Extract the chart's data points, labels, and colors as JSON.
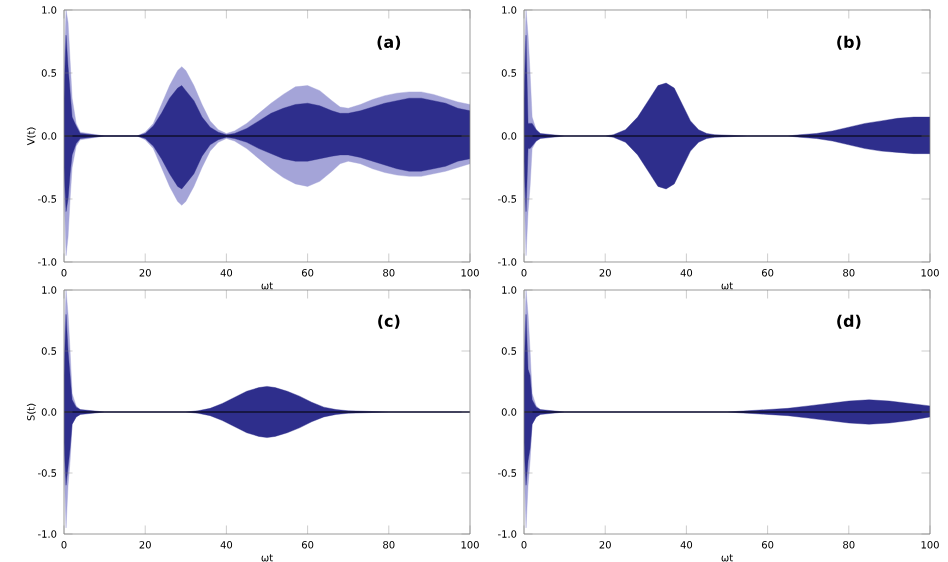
{
  "chart_data": [
    {
      "type": "area",
      "xlabel": "ωt",
      "ylabel": "V(t)",
      "annotations": [
        "(a)"
      ],
      "xlim": [
        0,
        100
      ],
      "ylim": [
        -1,
        1
      ],
      "xticks": [
        0,
        20,
        40,
        60,
        80,
        100
      ],
      "yticks": [
        {
          "value": -1,
          "label": "-1.0"
        },
        {
          "value": -0.5,
          "label": "-0.5"
        },
        {
          "value": 0,
          "label": "0.0"
        },
        {
          "value": 0.5,
          "label": "0.5"
        },
        {
          "value": 1,
          "label": "1.0"
        }
      ],
      "ref_lines": [
        {
          "axis": "y",
          "value": 0,
          "color": "#000000"
        }
      ],
      "x": [
        0,
        0.5,
        1,
        1.5,
        2,
        3,
        4,
        10,
        18,
        20,
        22,
        24,
        26,
        28,
        29,
        30,
        32,
        34,
        36,
        38,
        40,
        42,
        45,
        48,
        51,
        54,
        57,
        60,
        63,
        66,
        68,
        70,
        73,
        76,
        79,
        82,
        85,
        88,
        91,
        94,
        97,
        100
      ],
      "series": [
        {
          "color": "#a4a4d8",
          "values": [
            0.5,
            1.0,
            0.9,
            0.6,
            0.3,
            0.1,
            0.03,
            0,
            0,
            0.03,
            0.1,
            0.25,
            0.4,
            0.52,
            0.55,
            0.52,
            0.4,
            0.25,
            0.12,
            0.05,
            0.02,
            0.04,
            0.1,
            0.18,
            0.26,
            0.33,
            0.39,
            0.4,
            0.36,
            0.28,
            0.23,
            0.22,
            0.25,
            0.29,
            0.32,
            0.34,
            0.35,
            0.35,
            0.33,
            0.3,
            0.27,
            0.25
          ]
        },
        {
          "color": "#a4a4d8",
          "values": [
            -0.4,
            -0.95,
            -0.8,
            -0.5,
            -0.25,
            -0.08,
            -0.03,
            0,
            0,
            -0.03,
            -0.1,
            -0.25,
            -0.4,
            -0.52,
            -0.55,
            -0.52,
            -0.4,
            -0.25,
            -0.12,
            -0.05,
            -0.02,
            -0.04,
            -0.1,
            -0.18,
            -0.26,
            -0.33,
            -0.38,
            -0.4,
            -0.36,
            -0.28,
            -0.22,
            -0.2,
            -0.22,
            -0.26,
            -0.29,
            -0.31,
            -0.32,
            -0.32,
            -0.3,
            -0.28,
            -0.25,
            -0.22
          ]
        },
        {
          "color": "#2e2e8c",
          "values": [
            0.3,
            0.8,
            0.55,
            0.35,
            0.15,
            0.08,
            0.02,
            0,
            0,
            0.02,
            0.08,
            0.18,
            0.3,
            0.38,
            0.4,
            0.36,
            0.28,
            0.15,
            0.07,
            0.03,
            0.01,
            0.02,
            0.06,
            0.12,
            0.18,
            0.22,
            0.25,
            0.26,
            0.24,
            0.2,
            0.18,
            0.18,
            0.2,
            0.23,
            0.26,
            0.28,
            0.3,
            0.3,
            0.28,
            0.26,
            0.22,
            0.2
          ]
        },
        {
          "color": "#2e2e8c",
          "values": [
            -0.25,
            -0.6,
            -0.5,
            -0.3,
            -0.15,
            -0.06,
            -0.02,
            0,
            0,
            -0.02,
            -0.08,
            -0.18,
            -0.3,
            -0.4,
            -0.42,
            -0.38,
            -0.3,
            -0.16,
            -0.07,
            -0.03,
            -0.01,
            -0.02,
            -0.05,
            -0.1,
            -0.14,
            -0.18,
            -0.2,
            -0.2,
            -0.18,
            -0.16,
            -0.15,
            -0.15,
            -0.17,
            -0.2,
            -0.23,
            -0.26,
            -0.28,
            -0.28,
            -0.26,
            -0.24,
            -0.2,
            -0.18
          ]
        }
      ]
    },
    {
      "type": "area",
      "xlabel": "ωt",
      "annotations": [
        "(b)"
      ],
      "xlim": [
        0,
        100
      ],
      "ylim": [
        -1,
        1
      ],
      "xticks": [
        0,
        20,
        40,
        60,
        80,
        100
      ],
      "yticks": [
        {
          "value": -1,
          "label": "-1.0"
        },
        {
          "value": -0.5,
          "label": "-0.5"
        },
        {
          "value": 0,
          "label": "0.0"
        },
        {
          "value": 0.5,
          "label": "0.5"
        },
        {
          "value": 1,
          "label": "1.0"
        }
      ],
      "ref_lines": [
        {
          "axis": "y",
          "value": 0,
          "color": "#000000"
        }
      ],
      "x": [
        0,
        0.5,
        1,
        1.5,
        2,
        3,
        4,
        10,
        20,
        22,
        25,
        28,
        31,
        33,
        35,
        37,
        39,
        41,
        43,
        45,
        47,
        55,
        65,
        68,
        72,
        76,
        80,
        84,
        88,
        92,
        96,
        100
      ],
      "series": [
        {
          "color": "#a4a4d8",
          "x": [
            0,
            0.5,
            1,
            1.5,
            2,
            3,
            4
          ],
          "values": [
            0.5,
            1.0,
            0.8,
            0.5,
            0.15,
            0.05,
            0.02
          ]
        },
        {
          "color": "#a4a4d8",
          "x": [
            0,
            0.5,
            1,
            1.5,
            2,
            3,
            4
          ],
          "values": [
            -0.4,
            -0.95,
            -0.6,
            -0.4,
            -0.1,
            -0.04,
            -0.02
          ]
        },
        {
          "color": "#2e2e8c",
          "values": [
            0.3,
            0.8,
            0.1,
            0.1,
            0.1,
            0.05,
            0.02,
            0,
            0,
            0.01,
            0.05,
            0.15,
            0.3,
            0.4,
            0.42,
            0.38,
            0.25,
            0.12,
            0.05,
            0.02,
            0.01,
            0,
            0,
            0.01,
            0.02,
            0.04,
            0.07,
            0.1,
            0.12,
            0.14,
            0.15,
            0.15
          ]
        },
        {
          "color": "#2e2e8c",
          "values": [
            -0.2,
            -0.6,
            -0.1,
            -0.1,
            -0.08,
            -0.04,
            -0.02,
            0,
            0,
            -0.01,
            -0.05,
            -0.15,
            -0.3,
            -0.4,
            -0.42,
            -0.38,
            -0.25,
            -0.12,
            -0.05,
            -0.02,
            -0.01,
            0,
            0,
            -0.01,
            -0.02,
            -0.04,
            -0.07,
            -0.1,
            -0.12,
            -0.13,
            -0.14,
            -0.14
          ]
        }
      ]
    },
    {
      "type": "area",
      "xlabel": "ωt",
      "ylabel": "S(t)",
      "annotations": [
        "(c)"
      ],
      "xlim": [
        0,
        100
      ],
      "ylim": [
        -1,
        1
      ],
      "xticks": [
        0,
        20,
        40,
        60,
        80,
        100
      ],
      "yticks": [
        {
          "value": -1,
          "label": "-1.0"
        },
        {
          "value": -0.5,
          "label": "-0.5"
        },
        {
          "value": 0,
          "label": "0.0"
        },
        {
          "value": 0.5,
          "label": "0.5"
        },
        {
          "value": 1,
          "label": "1.0"
        }
      ],
      "ref_lines": [
        {
          "axis": "y",
          "value": 0,
          "color": "#000000"
        }
      ],
      "x": [
        0,
        0.5,
        1,
        1.5,
        2,
        3,
        4,
        10,
        30,
        33,
        36,
        39,
        42,
        45,
        48,
        50,
        52,
        55,
        58,
        61,
        64,
        67,
        70,
        80,
        100
      ],
      "series": [
        {
          "color": "#a4a4d8",
          "x": [
            0,
            0.5,
            1,
            1.5,
            2,
            3,
            4
          ],
          "values": [
            0.5,
            1.0,
            0.8,
            0.5,
            0.15,
            0.05,
            0.02
          ]
        },
        {
          "color": "#a4a4d8",
          "x": [
            0,
            0.5,
            1,
            1.5,
            2,
            3,
            4
          ],
          "values": [
            -0.4,
            -0.95,
            -0.6,
            -0.4,
            -0.1,
            -0.04,
            -0.02
          ]
        },
        {
          "color": "#2e2e8c",
          "values": [
            0.3,
            0.8,
            0.5,
            0.3,
            0.1,
            0.04,
            0.02,
            0,
            0,
            0.01,
            0.03,
            0.07,
            0.12,
            0.17,
            0.2,
            0.21,
            0.2,
            0.17,
            0.13,
            0.08,
            0.04,
            0.02,
            0.01,
            0,
            0
          ]
        },
        {
          "color": "#2e2e8c",
          "values": [
            -0.25,
            -0.6,
            -0.45,
            -0.3,
            -0.1,
            -0.04,
            -0.02,
            0,
            0,
            -0.01,
            -0.03,
            -0.07,
            -0.12,
            -0.17,
            -0.2,
            -0.21,
            -0.2,
            -0.17,
            -0.13,
            -0.08,
            -0.04,
            -0.02,
            -0.01,
            0,
            0
          ]
        }
      ]
    },
    {
      "type": "area",
      "xlabel": "ωt",
      "annotations": [
        "(d)"
      ],
      "xlim": [
        0,
        100
      ],
      "ylim": [
        -1,
        1
      ],
      "xticks": [
        0,
        20,
        40,
        60,
        80,
        100
      ],
      "yticks": [
        {
          "value": -1,
          "label": "-1.0"
        },
        {
          "value": -0.5,
          "label": "-0.5"
        },
        {
          "value": 0,
          "label": "0.0"
        },
        {
          "value": 0.5,
          "label": "0.5"
        },
        {
          "value": 1,
          "label": "1.0"
        }
      ],
      "ref_lines": [
        {
          "axis": "y",
          "value": 0,
          "color": "#000000"
        }
      ],
      "x": [
        0,
        0.5,
        1,
        1.5,
        2,
        3,
        4,
        10,
        50,
        55,
        60,
        65,
        70,
        75,
        80,
        85,
        90,
        95,
        100
      ],
      "series": [
        {
          "color": "#a4a4d8",
          "x": [
            0,
            0.5,
            1,
            1.5,
            2,
            3,
            4
          ],
          "values": [
            0.5,
            1.0,
            0.8,
            0.5,
            0.15,
            0.05,
            0.02
          ]
        },
        {
          "color": "#a4a4d8",
          "x": [
            0,
            0.5,
            1,
            1.5,
            2,
            3,
            4
          ],
          "values": [
            -0.4,
            -0.95,
            -0.6,
            -0.4,
            -0.1,
            -0.04,
            -0.02
          ]
        },
        {
          "color": "#2e2e8c",
          "values": [
            0.3,
            0.8,
            0.35,
            0.3,
            0.1,
            0.04,
            0.02,
            0,
            0,
            0.01,
            0.02,
            0.03,
            0.05,
            0.07,
            0.09,
            0.1,
            0.09,
            0.07,
            0.05
          ]
        },
        {
          "color": "#2e2e8c",
          "values": [
            -0.25,
            -0.6,
            -0.4,
            -0.3,
            -0.1,
            -0.04,
            -0.02,
            0,
            0,
            -0.01,
            -0.02,
            -0.03,
            -0.05,
            -0.07,
            -0.09,
            -0.1,
            -0.09,
            -0.07,
            -0.04
          ]
        }
      ]
    }
  ]
}
